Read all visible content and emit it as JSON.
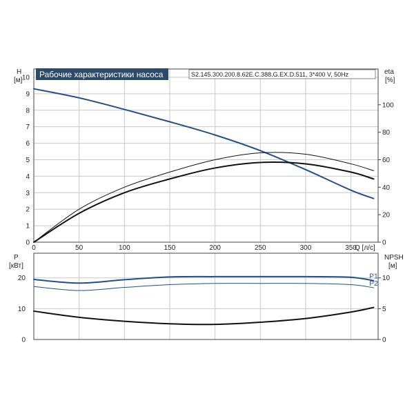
{
  "colors": {
    "blue": "#1f4f8c",
    "black": "#111111",
    "title_bg": "#2e4a6b"
  },
  "chart_data": [
    {
      "type": "line",
      "title": "Рабочие характеристики насоса",
      "subtitle": "S2.145.300.200.8.62E.C.388.G.EX.D.511, 3*400 V, 50Hz",
      "xlabel": "Q [л/с]",
      "ylabel_left": {
        "name": "H",
        "unit": "[м]"
      },
      "ylabel_right": {
        "name": "eta",
        "unit": "[%]"
      },
      "xlim": [
        0,
        380
      ],
      "ylim_left": [
        0,
        10.5
      ],
      "ylim_right": [
        0,
        126
      ],
      "x_ticks": [
        "0",
        "50",
        "100",
        "150",
        "200",
        "250",
        "300",
        "350"
      ],
      "y_ticks_left": [
        "0",
        "1",
        "2",
        "3",
        "4",
        "5",
        "6",
        "7",
        "8",
        "9",
        "10"
      ],
      "y_ticks_right": [
        "0",
        "20",
        "40",
        "60",
        "80",
        "100"
      ],
      "grid": true,
      "series": [
        {
          "axis": "left",
          "color": "#1f4f8c",
          "width": 2,
          "x": [
            0,
            50,
            100,
            150,
            200,
            250,
            300,
            350,
            375
          ],
          "y": [
            9.3,
            8.75,
            8.05,
            7.3,
            6.5,
            5.55,
            4.4,
            3.15,
            2.65
          ]
        },
        {
          "axis": "right",
          "color": "#111111",
          "width": 1,
          "x": [
            0,
            50,
            100,
            150,
            200,
            250,
            300,
            350,
            375
          ],
          "y": [
            0,
            24,
            40,
            51,
            60,
            65,
            64,
            57,
            52
          ]
        },
        {
          "axis": "right",
          "color": "#111111",
          "width": 2,
          "x": [
            0,
            50,
            100,
            150,
            200,
            250,
            300,
            350,
            375
          ],
          "y": [
            0,
            21,
            36,
            46,
            54,
            58,
            57,
            51,
            46
          ]
        }
      ]
    },
    {
      "type": "line",
      "ylabel_left": {
        "name": "P",
        "unit": "[кВт]"
      },
      "ylabel_right": {
        "name": "NPSH",
        "unit": "[м]"
      },
      "xlim": [
        0,
        380
      ],
      "ylim_left": [
        0,
        28
      ],
      "ylim_right": [
        0,
        14
      ],
      "y_ticks_left": [
        "0",
        "10",
        "20"
      ],
      "y_ticks_right": [
        "0",
        "5",
        "10"
      ],
      "grid": true,
      "series": [
        {
          "name": "P1",
          "axis": "left",
          "color": "#1f4f8c",
          "width": 2,
          "x": [
            0,
            50,
            100,
            150,
            200,
            250,
            300,
            350,
            375
          ],
          "y": [
            19.5,
            18.3,
            19.4,
            20.3,
            20.4,
            20.4,
            20.4,
            20.2,
            19.1
          ]
        },
        {
          "name": "P2",
          "axis": "left",
          "color": "#1f4f8c",
          "width": 1,
          "x": [
            0,
            50,
            100,
            150,
            200,
            250,
            300,
            350,
            375
          ],
          "y": [
            17.2,
            15.9,
            16.9,
            17.8,
            18.2,
            18.2,
            18.2,
            17.8,
            16.8
          ]
        },
        {
          "name": "",
          "axis": "right",
          "color": "#111111",
          "width": 2,
          "x": [
            0,
            50,
            100,
            150,
            200,
            250,
            300,
            350,
            375
          ],
          "y": [
            4.6,
            3.6,
            2.95,
            2.55,
            2.45,
            2.8,
            3.4,
            4.45,
            5.2
          ]
        }
      ]
    }
  ]
}
